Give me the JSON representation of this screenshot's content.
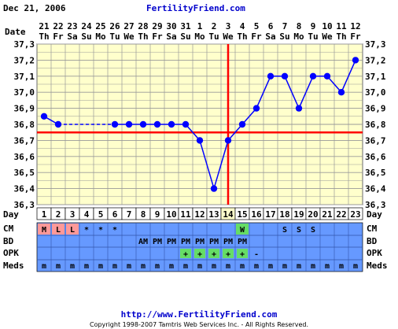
{
  "header": {
    "date_text": "Dec 21, 2006",
    "site_title": "FertilityFriend.com"
  },
  "footer": {
    "url": "http://www.FertilityFriend.com",
    "copyright": "Copyright 1998-2007 Tamtris Web Services Inc. - All Rights Reserved."
  },
  "row_labels": {
    "date": "Date",
    "day": "Day",
    "cm": "CM",
    "bd": "BD",
    "opk": "OPK",
    "meds": "Meds"
  },
  "colors": {
    "plot_bg": "#ffffcc",
    "grid": "#999999",
    "temp_line": "#0000ff",
    "coverline": "#ff0000",
    "ovulation_line": "#ff0000",
    "info_rows_bg": "#6699ff",
    "cm_red": "#ff9999",
    "cm_green": "#66dd66",
    "opk_green": "#66dd66",
    "title_blue": "#0000cc"
  },
  "chart_data": {
    "type": "line",
    "ylim": [
      36.3,
      37.3
    ],
    "y_ticks": [
      "36,3",
      "36,4",
      "36,5",
      "36,6",
      "36,7",
      "36,8",
      "36,9",
      "37,0",
      "37,1",
      "37,2",
      "37,3"
    ],
    "dates": [
      "21",
      "22",
      "23",
      "24",
      "25",
      "26",
      "27",
      "28",
      "29",
      "30",
      "31",
      "1",
      "2",
      "3",
      "4",
      "5",
      "6",
      "7",
      "8",
      "9",
      "10",
      "11",
      "12"
    ],
    "weekdays": [
      "Th",
      "Fr",
      "Sa",
      "Su",
      "Mo",
      "Tu",
      "We",
      "Th",
      "Fr",
      "Sa",
      "Su",
      "Mo",
      "Tu",
      "We",
      "Th",
      "Fr",
      "Sa",
      "Su",
      "Mo",
      "Tu",
      "We",
      "Th",
      "Fr"
    ],
    "days": [
      "1",
      "2",
      "3",
      "4",
      "5",
      "6",
      "7",
      "8",
      "9",
      "10",
      "11",
      "12",
      "13",
      "14",
      "15",
      "16",
      "17",
      "18",
      "19",
      "20",
      "21",
      "22",
      "23"
    ],
    "temperatures": [
      36.85,
      36.8,
      null,
      null,
      null,
      36.8,
      36.8,
      36.8,
      36.8,
      36.8,
      36.8,
      36.7,
      36.4,
      36.7,
      36.8,
      36.9,
      37.1,
      37.1,
      36.9,
      37.1,
      37.1,
      37.0,
      37.2
    ],
    "dashed_segments": [
      [
        2,
        6
      ]
    ],
    "coverline": 36.75,
    "ovulation_day": 14,
    "cm": [
      "M",
      "L",
      "L",
      "*",
      "*",
      "*",
      "",
      "",
      "",
      "",
      "",
      "",
      "",
      "",
      "W",
      "",
      "",
      "S",
      "S",
      "S",
      "",
      "",
      ""
    ],
    "cm_colors": [
      "red",
      "red",
      "red",
      "",
      "",
      "",
      "",
      "",
      "",
      "",
      "",
      "",
      "",
      "",
      "green",
      "",
      "",
      "",
      "",
      "",
      "",
      "",
      ""
    ],
    "bd": [
      "",
      "",
      "",
      "",
      "",
      "",
      "",
      "AM",
      "PM",
      "PM",
      "PM",
      "PM",
      "PM",
      "PM",
      "PM",
      "",
      "",
      "",
      "",
      "",
      "",
      "",
      ""
    ],
    "opk": [
      "",
      "",
      "",
      "",
      "",
      "",
      "",
      "",
      "",
      "",
      "+",
      "+",
      "+",
      "+",
      "+",
      "-",
      "",
      "",
      "",
      "",
      "",
      "",
      ""
    ],
    "meds": [
      "m",
      "m",
      "m",
      "m",
      "m",
      "m",
      "m",
      "m",
      "m",
      "m",
      "m",
      "m",
      "m",
      "m",
      "m",
      "m",
      "m",
      "m",
      "m",
      "m",
      "m",
      "m",
      "m"
    ]
  }
}
